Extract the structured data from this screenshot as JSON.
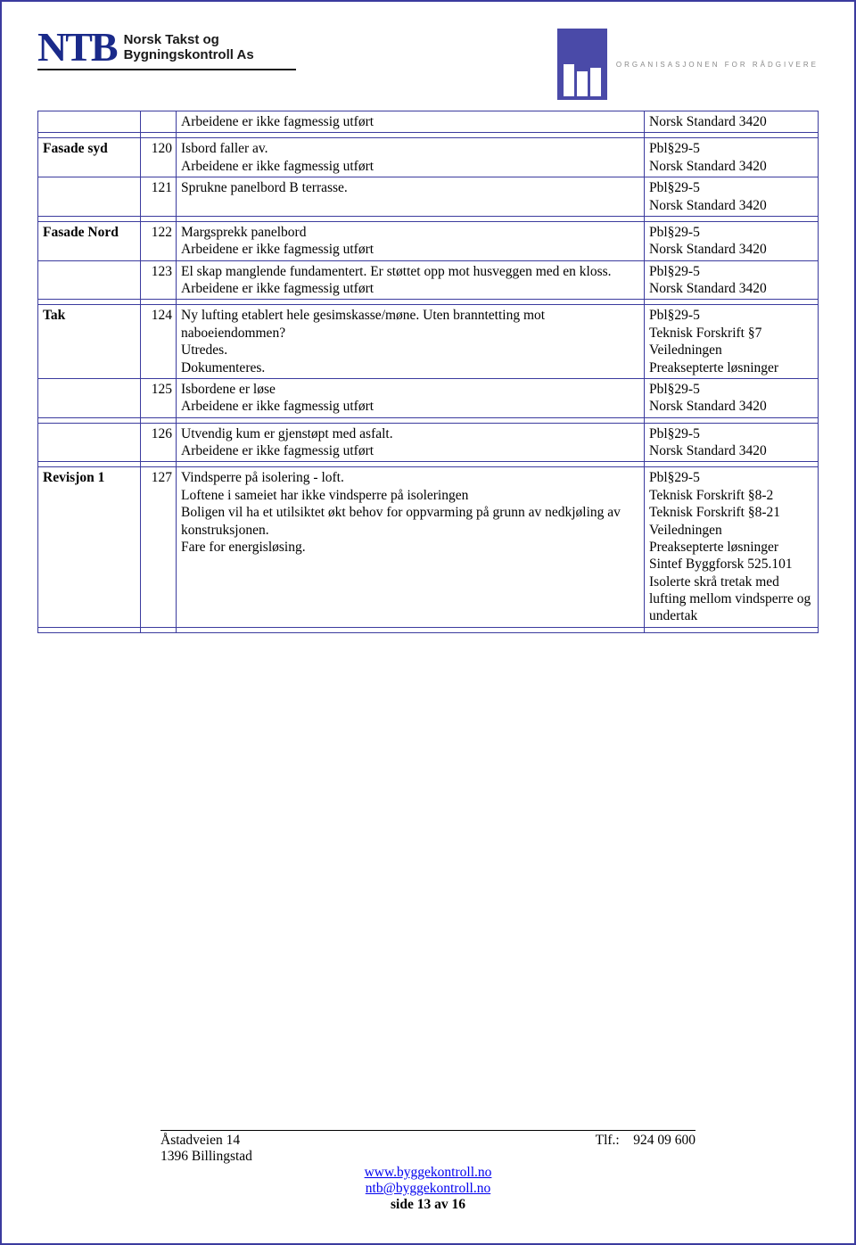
{
  "header": {
    "logo_abbr": "NTB",
    "logo_name_l1": "Norsk Takst og",
    "logo_name_l2": "Bygningskontroll As",
    "rif_text": "ORGANISASJONEN FOR RÅDGIVERE"
  },
  "colors": {
    "border": "#3b3b9e",
    "logo_blue": "#1a2a8a",
    "rif_bg": "#4a4aa8",
    "link": "#0000ee"
  },
  "rows": [
    {
      "cat": "",
      "num": "",
      "desc": "Arbeidene er ikke fagmessig utført",
      "ref": "Norsk Standard 3420"
    },
    {
      "spacer": true
    },
    {
      "cat": "Fasade syd",
      "num": "120",
      "desc": "Isbord faller av.\nArbeidene er ikke fagmessig utført",
      "ref": "Pbl§29-5\nNorsk Standard 3420"
    },
    {
      "cat": "",
      "num": "121",
      "desc": "Sprukne panelbord B terrasse.",
      "ref": "Pbl§29-5\nNorsk Standard 3420"
    },
    {
      "spacer": true
    },
    {
      "cat": "Fasade Nord",
      "num": "122",
      "desc": "Margsprekk panelbord\nArbeidene er ikke fagmessig utført",
      "ref": "Pbl§29-5\nNorsk Standard 3420"
    },
    {
      "cat": "",
      "num": "123",
      "desc": "El skap manglende fundamentert. Er støttet opp mot husveggen med en kloss.\nArbeidene er ikke fagmessig utført",
      "ref": "Pbl§29-5\nNorsk Standard 3420"
    },
    {
      "spacer": true
    },
    {
      "cat": "Tak",
      "num": "124",
      "desc": "Ny lufting etablert hele gesimskasse/møne. Uten branntetting mot naboeiendommen?\nUtredes.\nDokumenteres.",
      "ref": "Pbl§29-5\nTeknisk Forskrift §7\nVeiledningen\nPreaksepterte løsninger"
    },
    {
      "cat": "",
      "num": "125",
      "desc": "Isbordene er løse\nArbeidene er ikke fagmessig utført",
      "ref": "Pbl§29-5\nNorsk Standard 3420"
    },
    {
      "spacer": true
    },
    {
      "cat": "",
      "num": "126",
      "desc": "Utvendig kum er gjenstøpt med asfalt.\nArbeidene er ikke fagmessig utført",
      "ref": "Pbl§29-5\nNorsk Standard 3420"
    },
    {
      "spacer": true
    },
    {
      "cat": "Revisjon 1",
      "num": "127",
      "desc": "Vindsperre på isolering - loft.\nLoftene i sameiet har ikke vindsperre på isoleringen\nBoligen vil ha et utilsiktet økt behov for oppvarming på grunn av nedkjøling av konstruksjonen.\nFare for energisløsing.",
      "ref": "Pbl§29-5\nTeknisk Forskrift §8-2\nTeknisk Forskrift §8-21\nVeiledningen\nPreaksepterte løsninger\nSintef Byggforsk 525.101 Isolerte skrå tretak med lufting mellom vindsperre og undertak"
    },
    {
      "spacer": true
    }
  ],
  "footer": {
    "addr_l1": "Åstadveien 14",
    "addr_l2": "1396 Billingstad",
    "tlf_label": "Tlf.:",
    "tlf_value": "924 09 600",
    "link_web": "www.byggekontroll.no",
    "link_mail": "ntb@byggekontroll.no",
    "page_label": "side 13 av 16"
  }
}
